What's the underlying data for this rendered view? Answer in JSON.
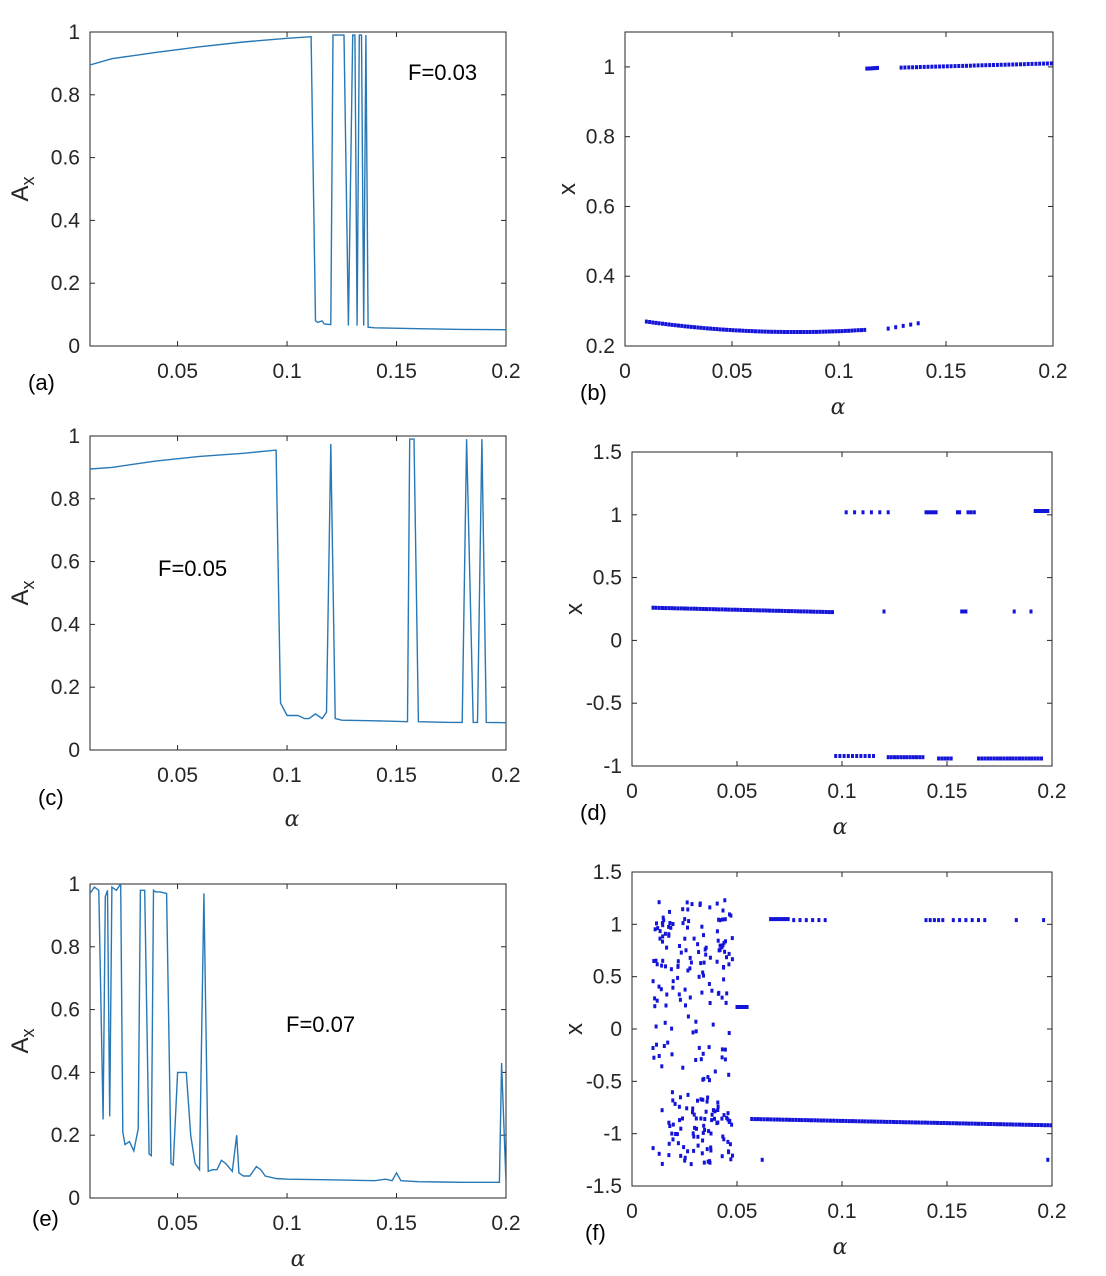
{
  "colors": {
    "line": "#2878b5",
    "points": "#1414d8",
    "axes": "#262626"
  },
  "chart_data": [
    {
      "id": "a",
      "type": "line",
      "panel_label": "(a)",
      "annotation": "F=0.03",
      "xlabel": "",
      "ylabel": "Ax",
      "xlim": [
        0.01,
        0.2
      ],
      "ylim": [
        0,
        1
      ],
      "xticks": [
        "0.05",
        "0.1",
        "0.15",
        "0.2"
      ],
      "yticks": [
        "0",
        "0.2",
        "0.4",
        "0.6",
        "0.8",
        "1"
      ],
      "series": [
        {
          "x": [
            0.01,
            0.02,
            0.04,
            0.06,
            0.08,
            0.1,
            0.111,
            0.113,
            0.114,
            0.116,
            0.117,
            0.12,
            0.121,
            0.122,
            0.124,
            0.126,
            0.128,
            0.13,
            0.131,
            0.132,
            0.133,
            0.134,
            0.135,
            0.136,
            0.137,
            0.14,
            0.16,
            0.18,
            0.2
          ],
          "y": [
            0.895,
            0.915,
            0.935,
            0.953,
            0.968,
            0.98,
            0.985,
            0.08,
            0.075,
            0.08,
            0.07,
            0.068,
            0.99,
            0.99,
            0.99,
            0.99,
            0.065,
            0.99,
            0.99,
            0.065,
            0.99,
            0.99,
            0.065,
            0.99,
            0.06,
            0.058,
            0.055,
            0.053,
            0.052
          ]
        }
      ]
    },
    {
      "id": "b",
      "type": "scatter",
      "panel_label": "(b)",
      "xlabel": "α",
      "ylabel": "x",
      "xlim": [
        0,
        0.2
      ],
      "ylim": [
        0.2,
        1.1
      ],
      "xticks": [
        "0",
        "0.05",
        "0.1",
        "0.15",
        "0.2"
      ],
      "yticks": [
        "0.2",
        "0.4",
        "0.6",
        "0.8",
        "1"
      ],
      "segments": [
        {
          "x0": 0.01,
          "x1": 0.112,
          "step": 0.0015,
          "yfn": "quad",
          "ya": 0.27,
          "yb": 0.24,
          "yc": 0.25,
          "xmin": 0.08
        },
        {
          "x0": 0.113,
          "x1": 0.118,
          "step": 0.001,
          "y0": 0.995,
          "y1": 0.997
        },
        {
          "x0": 0.123,
          "x1": 0.138,
          "step": 0.0035,
          "y0": 0.25,
          "y1": 0.265
        },
        {
          "x0": 0.129,
          "x1": 0.2,
          "step": 0.0018,
          "y0": 0.998,
          "y1": 1.01
        }
      ]
    },
    {
      "id": "c",
      "type": "line",
      "panel_label": "(c)",
      "annotation": "F=0.05",
      "xlabel": "α",
      "ylabel": "Ax",
      "xlim": [
        0.01,
        0.2
      ],
      "ylim": [
        0,
        1
      ],
      "xticks": [
        "0.05",
        "0.1",
        "0.15",
        "0.2"
      ],
      "yticks": [
        "0",
        "0.2",
        "0.4",
        "0.6",
        "0.8",
        "1"
      ],
      "series": [
        {
          "x": [
            0.01,
            0.02,
            0.04,
            0.06,
            0.08,
            0.095,
            0.097,
            0.1,
            0.105,
            0.108,
            0.11,
            0.113,
            0.116,
            0.118,
            0.12,
            0.122,
            0.125,
            0.14,
            0.155,
            0.156,
            0.158,
            0.16,
            0.175,
            0.18,
            0.182,
            0.185,
            0.187,
            0.189,
            0.191,
            0.2
          ],
          "y": [
            0.895,
            0.9,
            0.92,
            0.935,
            0.945,
            0.955,
            0.15,
            0.11,
            0.11,
            0.1,
            0.1,
            0.115,
            0.1,
            0.12,
            0.975,
            0.1,
            0.095,
            0.093,
            0.09,
            0.99,
            0.99,
            0.09,
            0.088,
            0.088,
            0.99,
            0.088,
            0.088,
            0.99,
            0.088,
            0.087
          ]
        }
      ]
    },
    {
      "id": "d",
      "type": "scatter",
      "panel_label": "(d)",
      "xlabel": "α",
      "ylabel": "x",
      "xlim": [
        0,
        0.2
      ],
      "ylim": [
        -1,
        1.5
      ],
      "xticks": [
        "0",
        "0.05",
        "0.1",
        "0.15",
        "0.2"
      ],
      "yticks": [
        "-1",
        "-0.5",
        "0",
        "0.5",
        "1",
        "1.5"
      ],
      "segments": [
        {
          "x0": 0.01,
          "x1": 0.095,
          "step": 0.0015,
          "y0": 0.26,
          "y1": 0.225
        },
        {
          "x0": 0.102,
          "x1": 0.12,
          "step": 0.004,
          "y0": 1.02,
          "y1": 1.02
        },
        {
          "x0": 0.14,
          "x1": 0.145,
          "step": 0.0012,
          "y0": 1.02,
          "y1": 1.02
        },
        {
          "x0": 0.155,
          "x1": 0.156,
          "step": 0.001,
          "y0": 1.02,
          "y1": 1.02
        },
        {
          "x0": 0.16,
          "x1": 0.163,
          "step": 0.0015,
          "y0": 1.02,
          "y1": 1.02
        },
        {
          "x0": 0.192,
          "x1": 0.198,
          "step": 0.0012,
          "y0": 1.03,
          "y1": 1.03
        },
        {
          "x0": 0.12,
          "x1": 0.12,
          "step": 0.001,
          "y0": 0.23,
          "y1": 0.23
        },
        {
          "x0": 0.157,
          "x1": 0.159,
          "step": 0.001,
          "y0": 0.23,
          "y1": 0.23
        },
        {
          "x0": 0.182,
          "x1": 0.182,
          "step": 0.001,
          "y0": 0.23,
          "y1": 0.23
        },
        {
          "x0": 0.19,
          "x1": 0.19,
          "step": 0.001,
          "y0": 0.23,
          "y1": 0.23
        },
        {
          "x0": 0.097,
          "x1": 0.115,
          "step": 0.002,
          "y0": -0.92,
          "y1": -0.92
        },
        {
          "x0": 0.122,
          "x1": 0.138,
          "step": 0.0015,
          "y0": -0.93,
          "y1": -0.93
        },
        {
          "x0": 0.146,
          "x1": 0.152,
          "step": 0.0015,
          "y0": -0.94,
          "y1": -0.94
        },
        {
          "x0": 0.165,
          "x1": 0.195,
          "step": 0.0015,
          "y0": -0.94,
          "y1": -0.94
        }
      ]
    },
    {
      "id": "e",
      "type": "line",
      "panel_label": "(e)",
      "annotation": "F=0.07",
      "xlabel": "α",
      "ylabel": "Ax",
      "xlim": [
        0.01,
        0.2
      ],
      "ylim": [
        0,
        1
      ],
      "xticks": [
        "0.05",
        "0.1",
        "0.15",
        "0.2"
      ],
      "yticks": [
        "0",
        "0.2",
        "0.4",
        "0.6",
        "0.8",
        "1"
      ],
      "series": [
        {
          "x": [
            0.01,
            0.012,
            0.014,
            0.016,
            0.017,
            0.018,
            0.019,
            0.02,
            0.022,
            0.024,
            0.025,
            0.026,
            0.028,
            0.03,
            0.032,
            0.033,
            0.035,
            0.037,
            0.038,
            0.039,
            0.04,
            0.042,
            0.045,
            0.047,
            0.048,
            0.05,
            0.052,
            0.054,
            0.056,
            0.058,
            0.06,
            0.062,
            0.064,
            0.066,
            0.068,
            0.07,
            0.072,
            0.075,
            0.077,
            0.078,
            0.08,
            0.083,
            0.086,
            0.088,
            0.09,
            0.095,
            0.1,
            0.12,
            0.14,
            0.145,
            0.148,
            0.15,
            0.152,
            0.16,
            0.17,
            0.18,
            0.19,
            0.197,
            0.198,
            0.2
          ],
          "y": [
            0.97,
            0.99,
            0.98,
            0.25,
            0.96,
            0.98,
            0.26,
            0.99,
            0.98,
            1.0,
            0.21,
            0.17,
            0.18,
            0.15,
            0.22,
            0.98,
            0.98,
            0.14,
            0.135,
            0.98,
            0.975,
            0.975,
            0.97,
            0.11,
            0.105,
            0.4,
            0.4,
            0.4,
            0.2,
            0.11,
            0.09,
            0.97,
            0.085,
            0.09,
            0.09,
            0.12,
            0.11,
            0.085,
            0.2,
            0.08,
            0.07,
            0.07,
            0.1,
            0.09,
            0.07,
            0.062,
            0.06,
            0.058,
            0.055,
            0.06,
            0.055,
            0.08,
            0.055,
            0.052,
            0.051,
            0.05,
            0.05,
            0.05,
            0.43,
            0.05
          ]
        }
      ]
    },
    {
      "id": "f",
      "type": "scatter",
      "panel_label": "(f)",
      "xlabel": "α",
      "ylabel": "x",
      "xlim": [
        0,
        0.2
      ],
      "ylim": [
        -1.5,
        1.5
      ],
      "xticks": [
        "0",
        "0.05",
        "0.1",
        "0.15",
        "0.2"
      ],
      "yticks": [
        "-1.5",
        "-1",
        "-0.5",
        "0",
        "0.5",
        "1",
        "1.5"
      ],
      "chaos": {
        "x0": 0.01,
        "x1": 0.048,
        "n": 240,
        "seed": 7
      },
      "segments": [
        {
          "x0": 0.05,
          "x1": 0.055,
          "step": 0.0012,
          "y0": 0.21,
          "y1": 0.21
        },
        {
          "x0": 0.066,
          "x1": 0.075,
          "step": 0.0012,
          "y0": 1.05,
          "y1": 1.05
        },
        {
          "x0": 0.077,
          "x1": 0.093,
          "step": 0.003,
          "y0": 1.04,
          "y1": 1.04
        },
        {
          "x0": 0.14,
          "x1": 0.148,
          "step": 0.002,
          "y0": 1.04,
          "y1": 1.04
        },
        {
          "x0": 0.153,
          "x1": 0.168,
          "step": 0.003,
          "y0": 1.04,
          "y1": 1.04
        },
        {
          "x0": 0.183,
          "x1": 0.183,
          "step": 0.001,
          "y0": 1.04,
          "y1": 1.04
        },
        {
          "x0": 0.196,
          "x1": 0.196,
          "step": 0.001,
          "y0": 1.04,
          "y1": 1.04
        },
        {
          "x0": 0.057,
          "x1": 0.2,
          "step": 0.0015,
          "y0": -0.86,
          "y1": -0.92
        },
        {
          "x0": 0.062,
          "x1": 0.062,
          "step": 0.001,
          "y0": -1.25,
          "y1": -1.25
        },
        {
          "x0": 0.198,
          "x1": 0.198,
          "step": 0.001,
          "y0": -1.25,
          "y1": -1.25
        }
      ]
    }
  ]
}
